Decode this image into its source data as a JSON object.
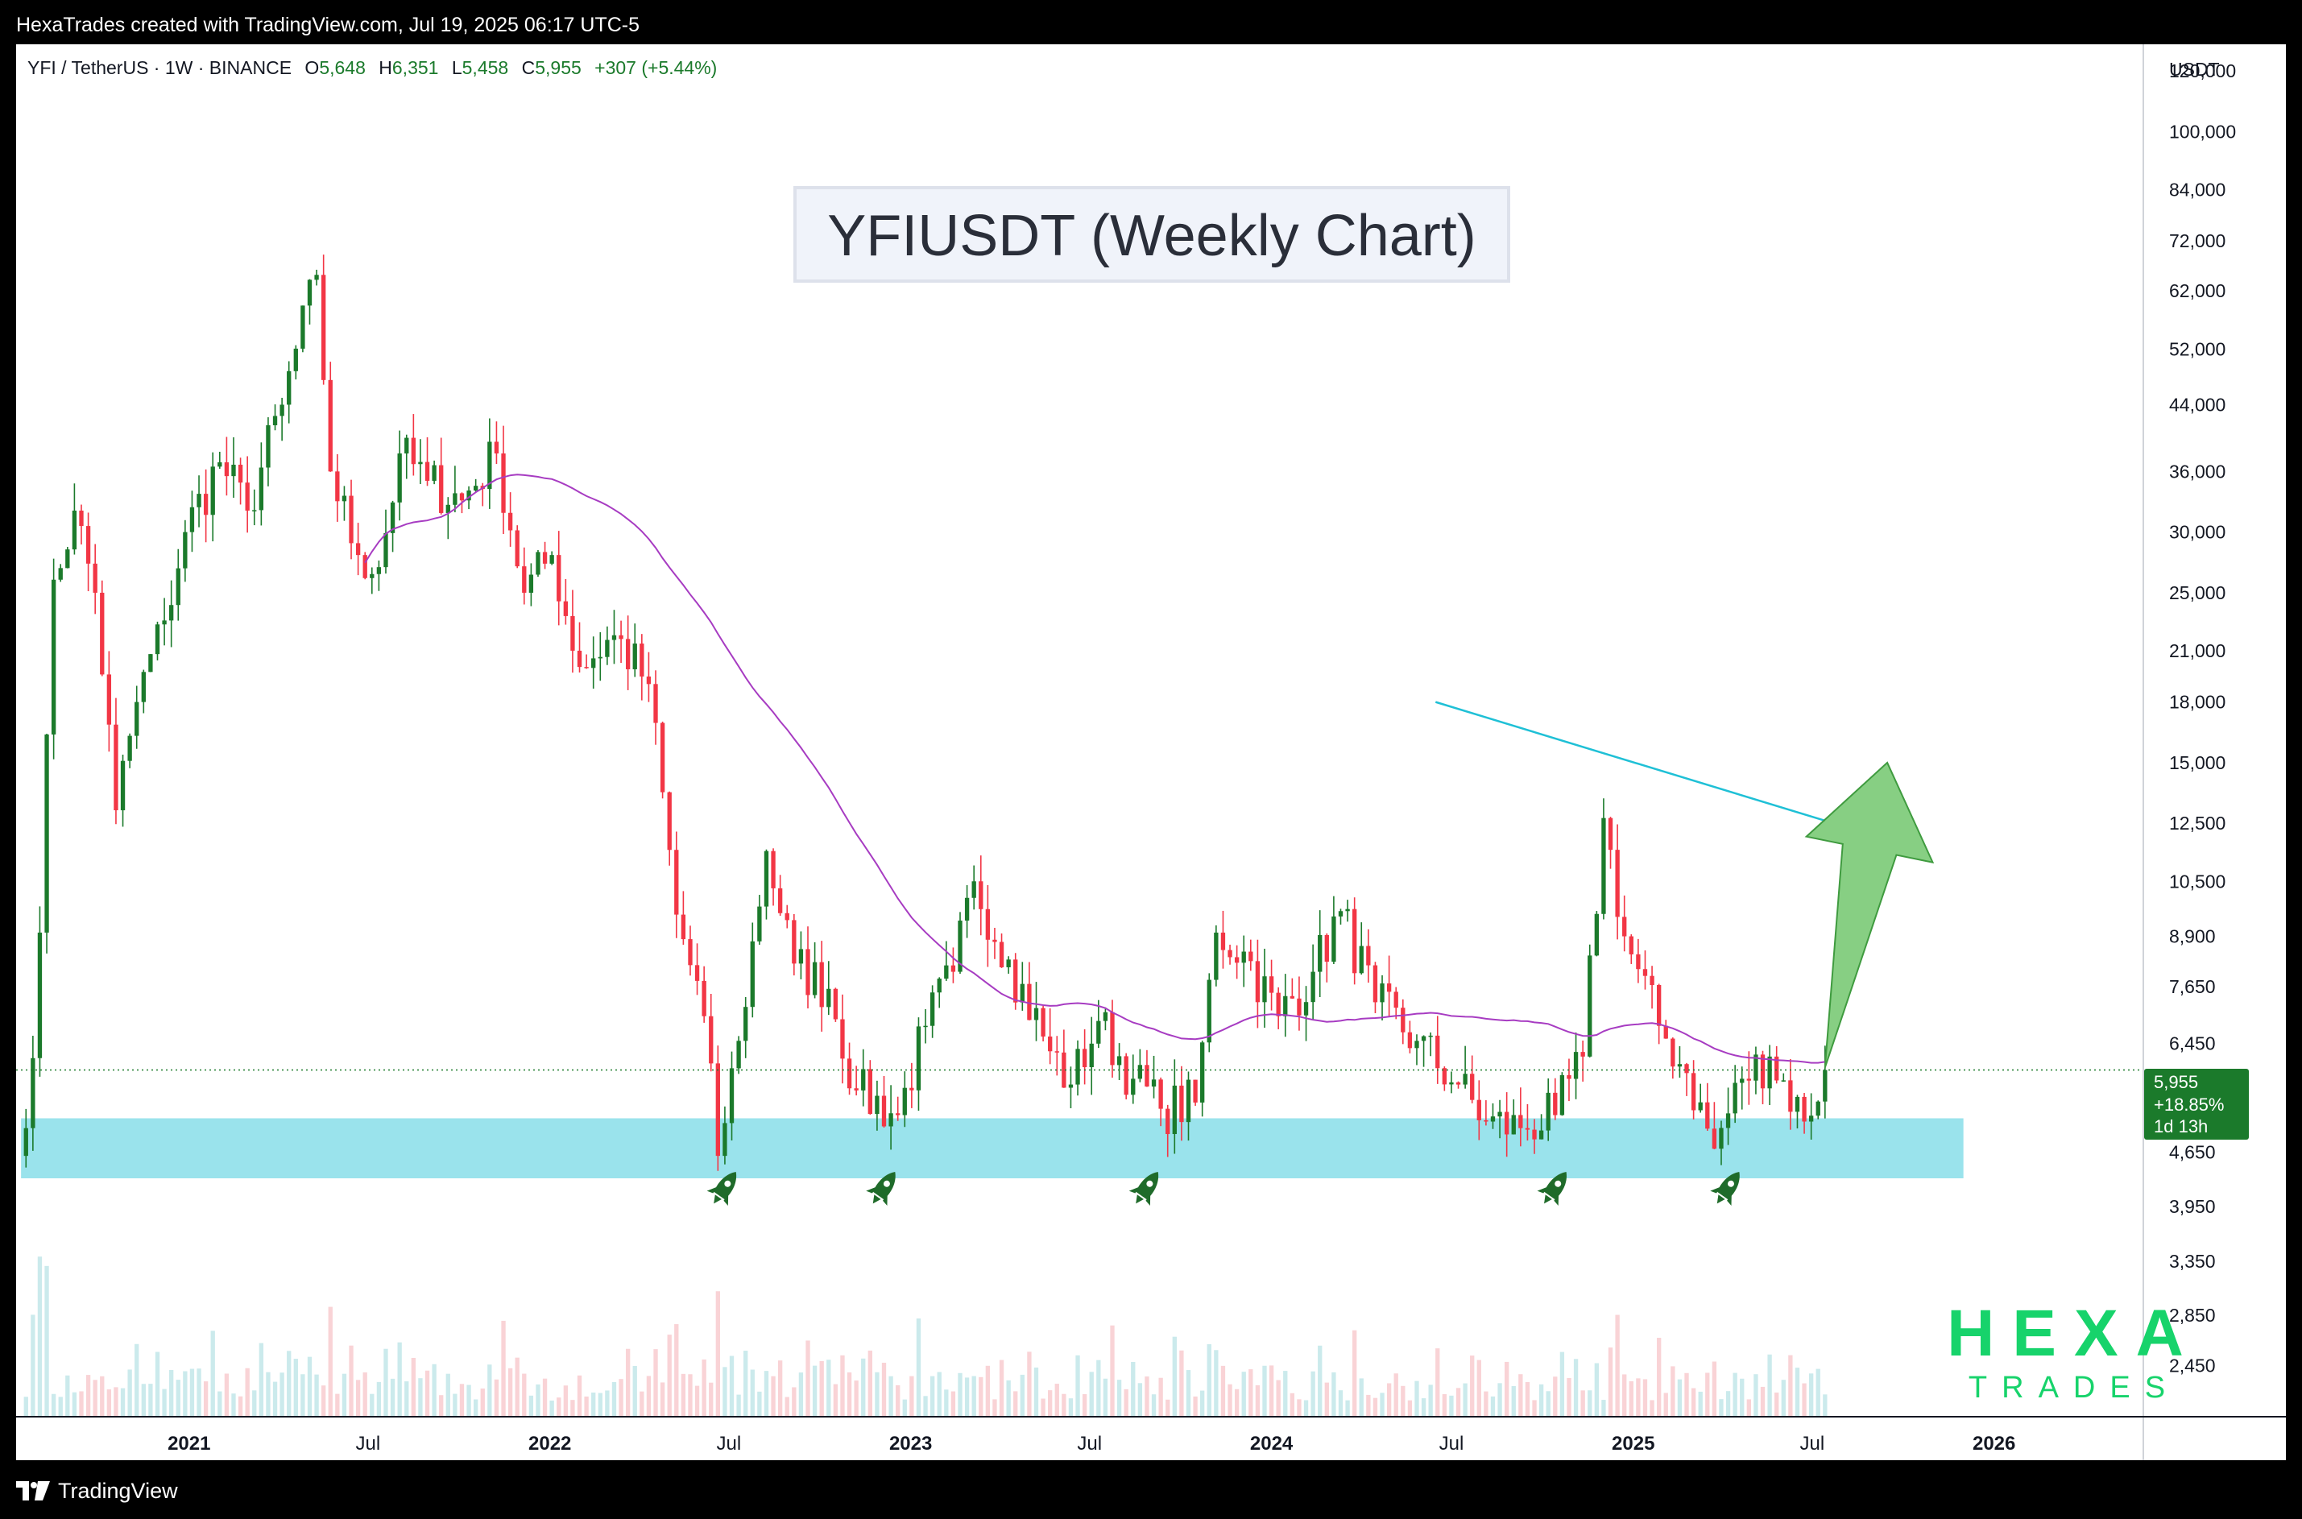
{
  "topbar": {
    "caption": "HexaTrades created with TradingView.com, Jul 19, 2025 06:17 UTC-5"
  },
  "symbol_bar": {
    "symbol": "YFI / TetherUS · 1W · BINANCE",
    "open_label": "O",
    "open": "5,648",
    "high_label": "H",
    "high": "6,351",
    "low_label": "L",
    "low": "5,458",
    "close_label": "C",
    "close": "5,955",
    "change": "+307 (+5.44%)"
  },
  "currency_label": "USDT",
  "price_badge": {
    "price": "5,955",
    "change_pct": "+18.85%",
    "countdown": "1d 13h"
  },
  "watermark": {
    "top": "HEXA",
    "bottom": "TRADES"
  },
  "footer": {
    "brand": "TradingView"
  },
  "colors": {
    "up": "#1b7a2b",
    "down": "#f23645",
    "ma": "#a73cc2",
    "trendline": "#1fc0d6",
    "support_zone": "#9ae3ec",
    "arrow": "#5fbf5a",
    "badge": "#1b7a2b",
    "watermark": "#17d36b"
  },
  "chart_data": {
    "type": "candlestick",
    "title": "YFIUSDT (Weekly Chart)",
    "scale": "log",
    "y_ticks": [
      "120,000",
      "100,000",
      "84,000",
      "72,000",
      "62,000",
      "52,000",
      "44,000",
      "36,000",
      "30,000",
      "25,000",
      "21,000",
      "18,000",
      "15,000",
      "12,500",
      "10,500",
      "8,900",
      "7,650",
      "6,450",
      "4,650",
      "3,950",
      "3,350",
      "2,850",
      "2,450"
    ],
    "ylim": [
      2100,
      130000
    ],
    "x_ticks": [
      {
        "label": "2021",
        "date": "2021-01-01"
      },
      {
        "label": "Jul",
        "date": "2021-07-01"
      },
      {
        "label": "2022",
        "date": "2022-01-01"
      },
      {
        "label": "Jul",
        "date": "2022-07-01"
      },
      {
        "label": "2023",
        "date": "2023-01-01"
      },
      {
        "label": "Jul",
        "date": "2023-07-01"
      },
      {
        "label": "2024",
        "date": "2024-01-01"
      },
      {
        "label": "Jul",
        "date": "2024-07-01"
      },
      {
        "label": "2025",
        "date": "2025-01-01"
      },
      {
        "label": "Jul",
        "date": "2025-07-01"
      },
      {
        "label": "2026",
        "date": "2026-01-01"
      }
    ],
    "xlim": [
      "2020-07-10",
      "2026-06-01"
    ],
    "anchor_closes": [
      [
        "2020-07-20",
        5000
      ],
      [
        "2020-08-03",
        9000
      ],
      [
        "2020-08-17",
        26000
      ],
      [
        "2020-09-07",
        32000
      ],
      [
        "2020-09-28",
        25000
      ],
      [
        "2020-10-19",
        13000
      ],
      [
        "2020-11-09",
        18000
      ],
      [
        "2020-12-07",
        23000
      ],
      [
        "2020-12-28",
        30000
      ],
      [
        "2021-02-01",
        37000
      ],
      [
        "2021-03-01",
        32000
      ],
      [
        "2021-04-05",
        44000
      ],
      [
        "2021-05-10",
        65000
      ],
      [
        "2021-05-24",
        36000
      ],
      [
        "2021-06-21",
        28000
      ],
      [
        "2021-07-12",
        27000
      ],
      [
        "2021-08-02",
        38000
      ],
      [
        "2021-08-30",
        35000
      ],
      [
        "2021-10-04",
        33000
      ],
      [
        "2021-11-08",
        38000
      ],
      [
        "2021-12-06",
        25000
      ],
      [
        "2022-01-03",
        28000
      ],
      [
        "2022-01-31",
        20000
      ],
      [
        "2022-03-07",
        22000
      ],
      [
        "2022-04-11",
        19000
      ],
      [
        "2022-05-09",
        9500
      ],
      [
        "2022-06-06",
        7000
      ],
      [
        "2022-06-20",
        4600
      ],
      [
        "2022-07-11",
        6500
      ],
      [
        "2022-08-08",
        11500
      ],
      [
        "2022-09-05",
        8200
      ],
      [
        "2022-10-10",
        7600
      ],
      [
        "2022-11-07",
        5600
      ],
      [
        "2022-12-19",
        5200
      ],
      [
        "2023-01-16",
        6800
      ],
      [
        "2023-02-13",
        8000
      ],
      [
        "2023-03-06",
        10500
      ],
      [
        "2023-04-10",
        8300
      ],
      [
        "2023-05-22",
        6300
      ],
      [
        "2023-06-12",
        5700
      ],
      [
        "2023-07-10",
        6900
      ],
      [
        "2023-08-14",
        5800
      ],
      [
        "2023-09-11",
        5300
      ],
      [
        "2023-10-16",
        5400
      ],
      [
        "2023-11-06",
        9000
      ],
      [
        "2023-12-04",
        8500
      ],
      [
        "2024-01-08",
        7000
      ],
      [
        "2024-02-12",
        8000
      ],
      [
        "2024-03-11",
        9600
      ],
      [
        "2024-04-15",
        7300
      ],
      [
        "2024-05-27",
        6500
      ],
      [
        "2024-07-08",
        5700
      ],
      [
        "2024-08-05",
        5100
      ],
      [
        "2024-09-09",
        5000
      ],
      [
        "2024-10-14",
        5200
      ],
      [
        "2024-11-11",
        6200
      ],
      [
        "2024-12-02",
        12700
      ],
      [
        "2024-12-23",
        8900
      ],
      [
        "2025-01-27",
        6800
      ],
      [
        "2025-02-24",
        5900
      ],
      [
        "2025-03-24",
        4700
      ],
      [
        "2025-04-21",
        5800
      ],
      [
        "2025-05-19",
        6200
      ],
      [
        "2025-06-23",
        5100
      ],
      [
        "2025-07-14",
        5955
      ]
    ],
    "annotations": {
      "support_zone": {
        "from": "2020-07-15",
        "to": "2025-12-01",
        "low": 4300,
        "high": 5150
      },
      "trendline": {
        "from": [
          "2024-06-15",
          18000
        ],
        "to": [
          "2025-07-14",
          12600
        ]
      },
      "arrow": {
        "from": [
          "2025-07-14",
          6000
        ],
        "to": [
          "2025-09-15",
          15000
        ]
      },
      "bounce_markers": [
        {
          "date": "2022-06-27",
          "price": 4180
        },
        {
          "date": "2022-12-05",
          "price": 4180
        },
        {
          "date": "2023-08-28",
          "price": 4180
        },
        {
          "date": "2024-10-14",
          "price": 4180
        },
        {
          "date": "2025-04-07",
          "price": 4180
        }
      ],
      "current_price_line": 5955
    }
  }
}
